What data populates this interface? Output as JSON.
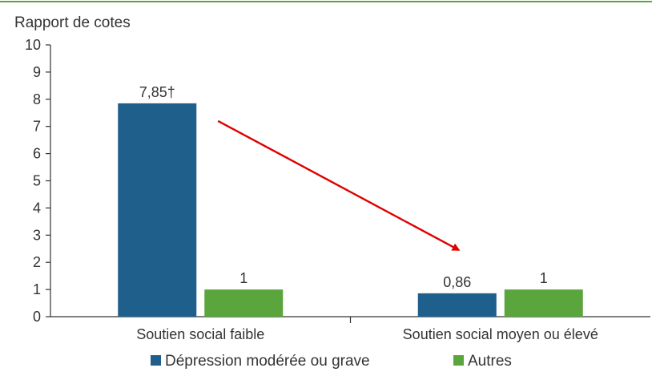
{
  "chart_data": {
    "type": "bar",
    "ylabel": "Rapport de cotes",
    "ylim": [
      0,
      10
    ],
    "yticks": [
      "0",
      "1",
      "2",
      "3",
      "4",
      "5",
      "6",
      "7",
      "8",
      "9",
      "10"
    ],
    "categories": [
      "Soutien social faible",
      "Soutien social moyen ou élevé"
    ],
    "series": [
      {
        "name": "Dépression modérée ou grave",
        "values": [
          7.85,
          0.86
        ],
        "labels": [
          "7,85†",
          "0,86"
        ],
        "color": "#1f5f8b"
      },
      {
        "name": "Autres",
        "values": [
          1,
          1
        ],
        "labels": [
          "1",
          "1"
        ],
        "color": "#5ba63c"
      }
    ],
    "legend_position": "bottom",
    "grid": false,
    "annotation": {
      "type": "arrow",
      "color": "#e00000",
      "from_category": 0,
      "to_category": 1
    }
  },
  "colors": {
    "top_rule": "#5ba63c",
    "axis": "#333333",
    "arrow": "#e00000"
  }
}
